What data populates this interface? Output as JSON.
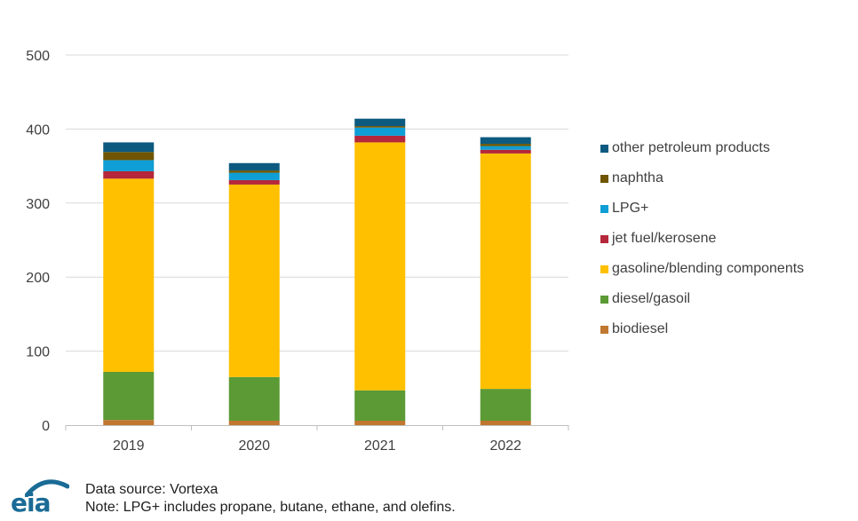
{
  "chart_data": {
    "type": "bar",
    "stacked": true,
    "categories": [
      "2019",
      "2020",
      "2021",
      "2022"
    ],
    "ylim": [
      0,
      500
    ],
    "yticks": [
      0,
      100,
      200,
      300,
      400,
      500
    ],
    "grid": true,
    "legend_position": "right",
    "series": [
      {
        "name": "biodiesel",
        "color": "#c0772f",
        "values": [
          7,
          6,
          6,
          6
        ]
      },
      {
        "name": "diesel/gasoil",
        "color": "#5b9a34",
        "values": [
          65,
          59,
          41,
          43
        ]
      },
      {
        "name": "gasoline/blending components",
        "color": "#ffc000",
        "values": [
          261,
          260,
          335,
          318
        ]
      },
      {
        "name": "jet fuel/kerosene",
        "color": "#b5273a",
        "values": [
          10,
          6,
          9,
          5
        ]
      },
      {
        "name": "LPG+",
        "color": "#0f9ed5",
        "values": [
          15,
          10,
          11,
          5
        ]
      },
      {
        "name": "naphtha",
        "color": "#6f5500",
        "values": [
          11,
          3,
          2,
          3
        ]
      },
      {
        "name": "other petroleum products",
        "color": "#0c5a7f",
        "values": [
          13,
          10,
          10,
          9
        ]
      }
    ]
  },
  "footer": {
    "logo_text": "eia",
    "source": "Data source: Vortexa",
    "note": "Note: LPG+ includes propane, butane, ethane, and olefins."
  }
}
